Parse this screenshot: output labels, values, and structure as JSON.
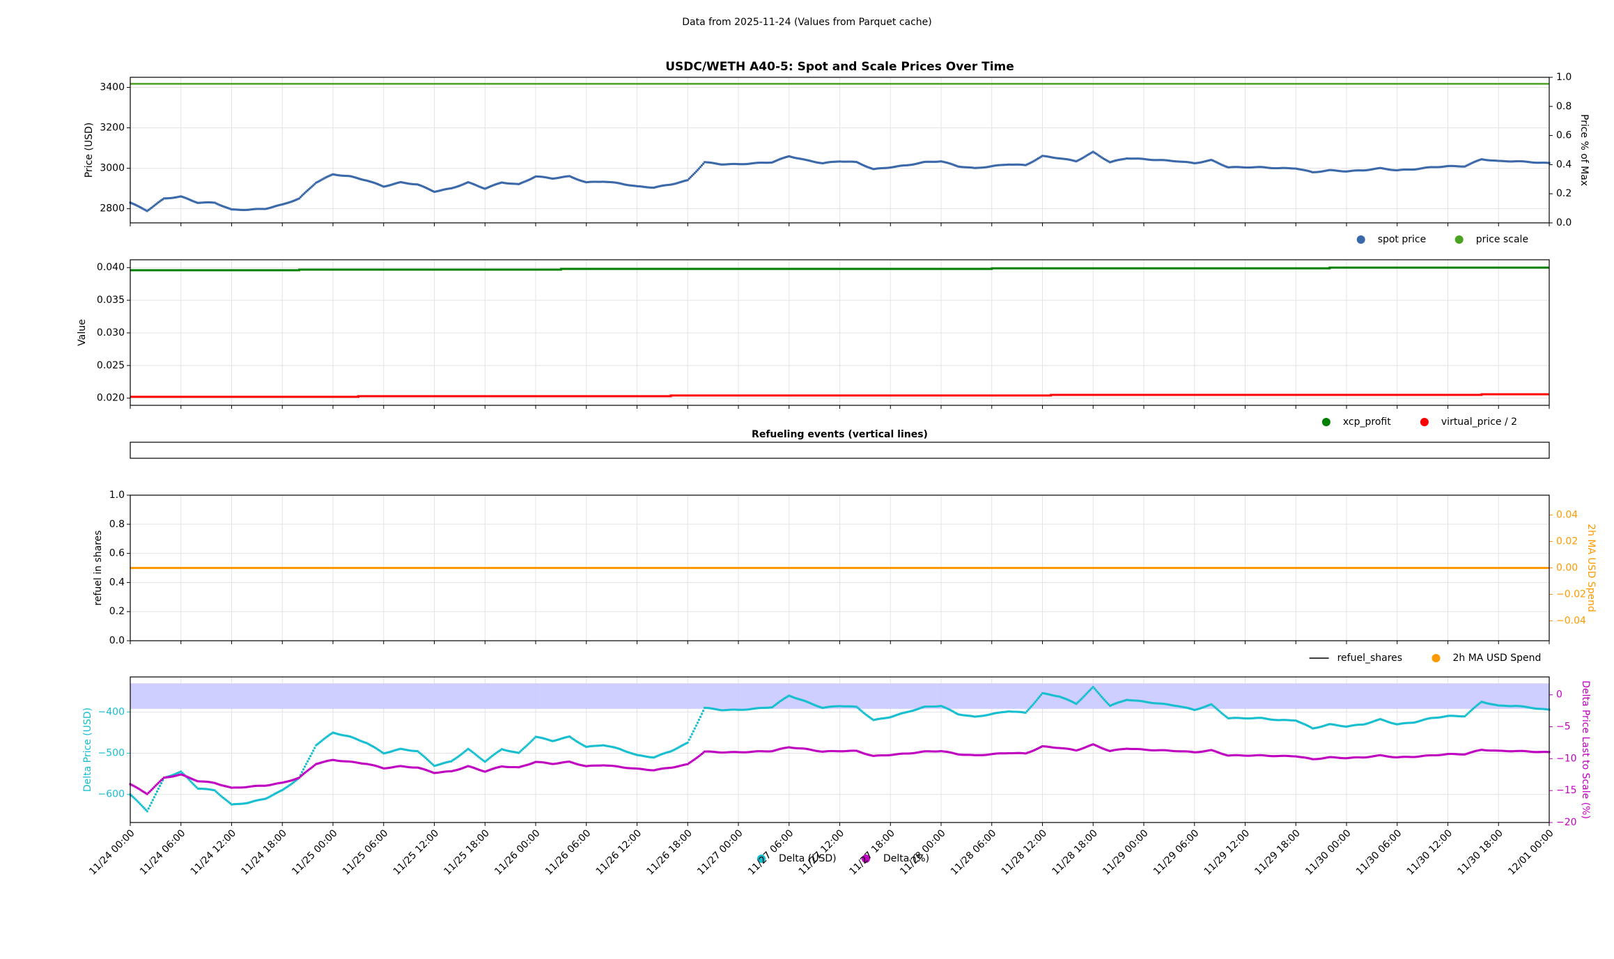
{
  "suptitle": "Data from 2025-11-24 (Values from Parquet cache)",
  "x_tick_labels": [
    "11/24 00:00",
    "11/24 06:00",
    "11/24 12:00",
    "11/24 18:00",
    "11/25 00:00",
    "11/25 06:00",
    "11/25 12:00",
    "11/25 18:00",
    "11/26 00:00",
    "11/26 06:00",
    "11/26 12:00",
    "11/26 18:00",
    "11/27 00:00",
    "11/27 06:00",
    "11/27 12:00",
    "11/27 18:00",
    "11/28 00:00",
    "11/28 06:00",
    "11/28 12:00",
    "11/28 18:00",
    "11/29 00:00",
    "11/29 06:00",
    "11/29 12:00",
    "11/29 18:00",
    "11/30 00:00",
    "11/30 06:00",
    "11/30 12:00",
    "11/30 18:00",
    "12/01 00:00"
  ],
  "chart_data": [
    {
      "type": "scatter",
      "title": "USDC/WETH A40-5: Spot and Scale Prices Over Time",
      "ylabel": "Price (USD)",
      "ylabel_right": "Price % of Max",
      "ylim": [
        2730,
        3450
      ],
      "yticks": [
        2800,
        3000,
        3200,
        3400
      ],
      "ylim_right": [
        0,
        1
      ],
      "yticks_right": [
        "0.0",
        "0.2",
        "0.4",
        "0.6",
        "0.8",
        "1.0"
      ],
      "grid": true,
      "legend_placement": "below-right",
      "x_hours": [
        0,
        2,
        4,
        6,
        8,
        10,
        12,
        14,
        16,
        18,
        20,
        22,
        24,
        26,
        28,
        30,
        32,
        34,
        36,
        38,
        40,
        42,
        44,
        46,
        48,
        50,
        52,
        54,
        56,
        58,
        60,
        62,
        64,
        66,
        68,
        70,
        72,
        74,
        76,
        78,
        80,
        82,
        84,
        86,
        88,
        90,
        92,
        94,
        96,
        98,
        100,
        102,
        104,
        106,
        108,
        110,
        112,
        114,
        116,
        118,
        120,
        122,
        124,
        126,
        128,
        130,
        132,
        134,
        136,
        138,
        140,
        142,
        144,
        146,
        148,
        150,
        152,
        154,
        156,
        158,
        160,
        162,
        164,
        166,
        168
      ],
      "series": [
        {
          "name": "spot price",
          "color": "#3a68a8",
          "axis": "left",
          "values": [
            2830,
            2790,
            2850,
            2860,
            2830,
            2830,
            2795,
            2795,
            2800,
            2820,
            2850,
            2930,
            2970,
            2960,
            2940,
            2910,
            2930,
            2920,
            2885,
            2900,
            2930,
            2900,
            2930,
            2920,
            2960,
            2950,
            2960,
            2930,
            2935,
            2925,
            2910,
            2905,
            2920,
            2940,
            3030,
            3020,
            3020,
            3025,
            3030,
            3060,
            3040,
            3025,
            3035,
            3030,
            2995,
            3005,
            3015,
            3030,
            3035,
            3010,
            3000,
            3010,
            3020,
            3015,
            3060,
            3050,
            3035,
            3080,
            3030,
            3050,
            3045,
            3040,
            3035,
            3025,
            3040,
            3005,
            3005,
            3005,
            3000,
            3000,
            2980,
            2990,
            2985,
            2990,
            3000,
            2990,
            2995,
            3005,
            3010,
            3010,
            3045,
            3035,
            3035,
            3030,
            3025
          ]
        },
        {
          "name": "price scale",
          "color": "#4aa320",
          "axis": "right",
          "values": [
            0.955
          ]
        }
      ]
    },
    {
      "type": "line",
      "ylabel": "Value",
      "ylim": [
        0.0189,
        0.0412
      ],
      "yticks": [
        "0.020",
        "0.025",
        "0.030",
        "0.035",
        "0.040"
      ],
      "grid": true,
      "legend_placement": "below-right",
      "series": [
        {
          "name": "xcp_profit",
          "color": "#008000",
          "points": [
            [
              0,
              0.0396
            ],
            [
              20,
              0.0396
            ],
            [
              20,
              0.0397
            ],
            [
              51,
              0.0397
            ],
            [
              51,
              0.0398
            ],
            [
              102,
              0.0398
            ],
            [
              102,
              0.0399
            ],
            [
              142,
              0.0399
            ],
            [
              142,
              0.04
            ],
            [
              168,
              0.04
            ]
          ]
        },
        {
          "name": "virtual_price / 2",
          "color": "#ff0000",
          "points": [
            [
              0,
              0.0202
            ],
            [
              27,
              0.0202
            ],
            [
              27,
              0.0203
            ],
            [
              64,
              0.0203
            ],
            [
              64,
              0.0204
            ],
            [
              109,
              0.0204
            ],
            [
              109,
              0.0205
            ],
            [
              160,
              0.0205
            ],
            [
              160,
              0.0206
            ],
            [
              168,
              0.0206
            ]
          ]
        }
      ]
    },
    {
      "type": "line",
      "title": "Refueling events (vertical lines)",
      "events": []
    },
    {
      "type": "line",
      "ylabel": "refuel in shares",
      "ylabel_right": "2h MA USD Spend",
      "ylim": [
        0,
        1
      ],
      "yticks": [
        "0.0",
        "0.2",
        "0.4",
        "0.6",
        "0.8",
        "1.0"
      ],
      "ylim_right": [
        -0.055,
        0.055
      ],
      "yticks_right": [
        "−0.04",
        "−0.02",
        "0.00",
        "0.02",
        "0.04"
      ],
      "grid": true,
      "legend_placement": "below-right",
      "series": [
        {
          "name": "refuel_shares",
          "color": "#000000",
          "values": []
        },
        {
          "name": "2h MA USD Spend",
          "color": "#ff9900",
          "axis": "right",
          "value": 0.0
        }
      ]
    },
    {
      "type": "scatter",
      "ylabel": "Delta Price (USD)",
      "ylabel_right": "Delta Price Last to Scale (%)",
      "ylim": [
        -668,
        -315
      ],
      "yticks": [
        "−600",
        "−500",
        "−400"
      ],
      "ylim_right": [
        -20,
        2.8
      ],
      "yticks_right": [
        "−20",
        "−15",
        "−10",
        "−5",
        "0"
      ],
      "band_right": [
        -2.2,
        1.8
      ],
      "band_color": "#ccccff",
      "grid": true,
      "legend_placement": "bottom-center",
      "series": [
        {
          "name": "Delta (USD)",
          "color": "#17becf",
          "axis": "left",
          "values": [
            -600,
            -640,
            -560,
            -545,
            -585,
            -590,
            -625,
            -620,
            -610,
            -590,
            -560,
            -480,
            -450,
            -460,
            -475,
            -500,
            -490,
            -495,
            -530,
            -520,
            -490,
            -520,
            -490,
            -500,
            -460,
            -470,
            -460,
            -485,
            -480,
            -490,
            -505,
            -510,
            -495,
            -475,
            -390,
            -395,
            -395,
            -392,
            -388,
            -360,
            -375,
            -390,
            -385,
            -388,
            -420,
            -412,
            -400,
            -388,
            -385,
            -405,
            -412,
            -405,
            -398,
            -402,
            -355,
            -362,
            -380,
            -340,
            -385,
            -370,
            -375,
            -380,
            -385,
            -395,
            -382,
            -415,
            -415,
            -415,
            -420,
            -420,
            -440,
            -430,
            -435,
            -430,
            -418,
            -430,
            -425,
            -415,
            -410,
            -410,
            -375,
            -385,
            -385,
            -390,
            -395
          ]
        },
        {
          "name": "Delta (%)",
          "color": "#c000c0",
          "axis": "right",
          "values": [
            -14,
            -15.5,
            -13,
            -12.5,
            -13.5,
            -13.8,
            -14.6,
            -14.4,
            -14.2,
            -13.8,
            -13,
            -10.8,
            -10.2,
            -10.5,
            -10.8,
            -11.5,
            -11.2,
            -11.4,
            -12.2,
            -12,
            -11.2,
            -12,
            -11.2,
            -11.4,
            -10.5,
            -10.8,
            -10.5,
            -11.2,
            -11,
            -11.3,
            -11.6,
            -11.8,
            -11.4,
            -10.9,
            -8.9,
            -9,
            -9,
            -8.9,
            -8.8,
            -8.2,
            -8.5,
            -8.9,
            -8.8,
            -8.8,
            -9.6,
            -9.4,
            -9.2,
            -8.9,
            -8.8,
            -9.3,
            -9.5,
            -9.3,
            -9.1,
            -9.2,
            -8.1,
            -8.3,
            -8.7,
            -7.8,
            -8.8,
            -8.4,
            -8.6,
            -8.7,
            -8.8,
            -9,
            -8.7,
            -9.5,
            -9.5,
            -9.5,
            -9.6,
            -9.6,
            -10.1,
            -9.8,
            -9.9,
            -9.8,
            -9.5,
            -9.8,
            -9.7,
            -9.5,
            -9.3,
            -9.3,
            -8.6,
            -8.8,
            -8.8,
            -8.9,
            -9
          ]
        }
      ]
    }
  ]
}
